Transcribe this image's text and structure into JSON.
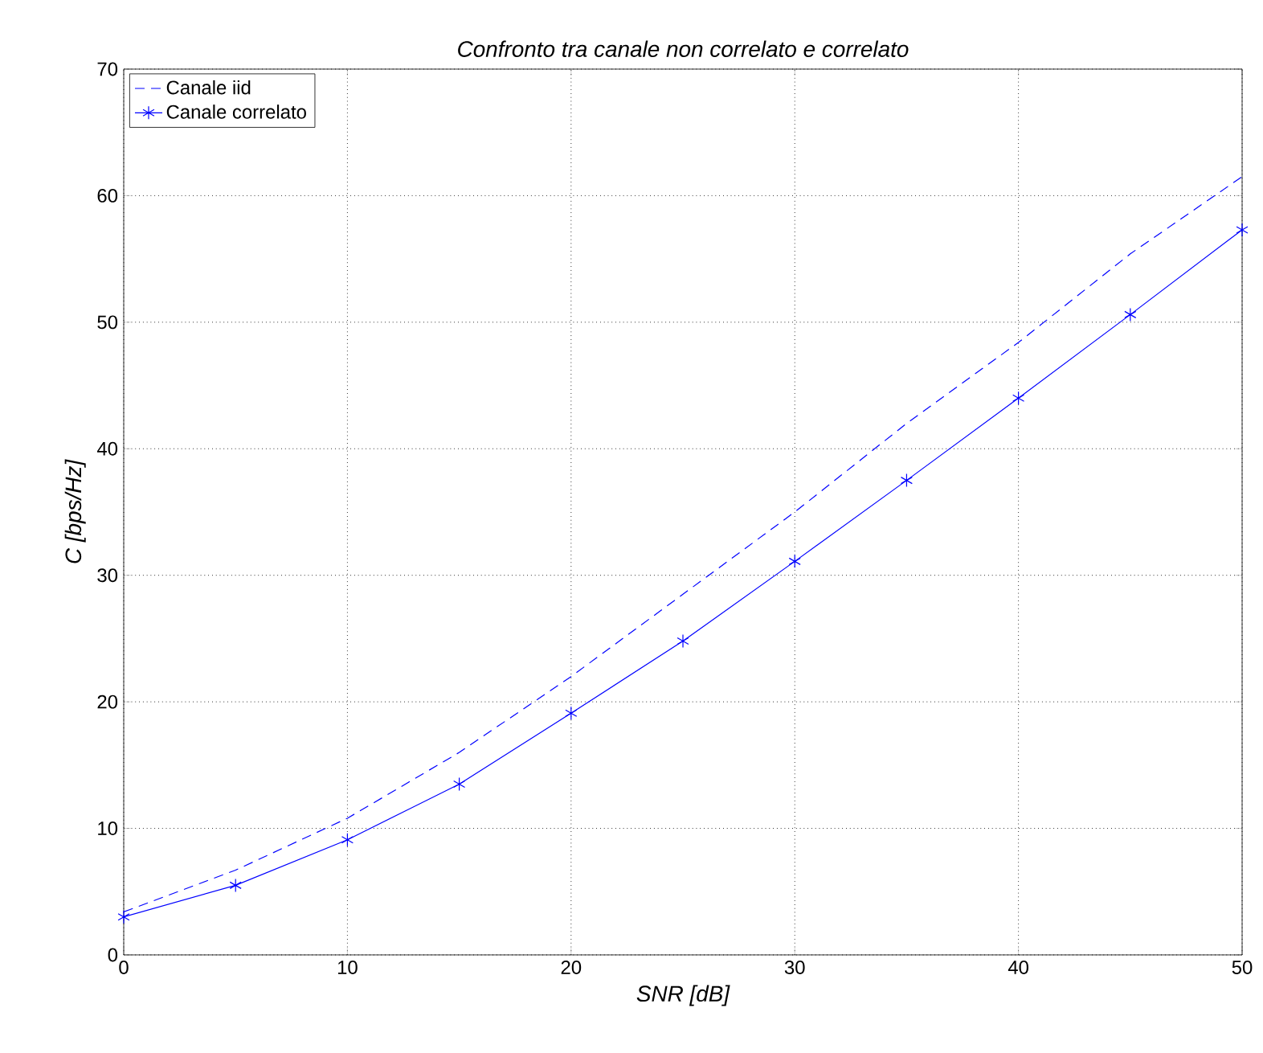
{
  "chart_data": {
    "type": "line",
    "title": "Confronto tra canale non correlato e correlato",
    "xlabel": "SNR [dB]",
    "ylabel": "C [bps/Hz]",
    "x": [
      0,
      5,
      10,
      15,
      20,
      25,
      30,
      35,
      40,
      45,
      50
    ],
    "series": [
      {
        "name": "Canale iid",
        "color": "#0000ff",
        "line_style": "dashed",
        "marker": "none",
        "values": [
          3.4,
          6.7,
          10.8,
          16,
          22,
          28.5,
          35,
          42,
          48.4,
          55.4,
          61.5
        ]
      },
      {
        "name": "Canale correlato",
        "color": "#0000ff",
        "line_style": "solid",
        "marker": "cross",
        "values": [
          3.0,
          5.5,
          9.1,
          13.5,
          19.1,
          24.8,
          31.1,
          37.5,
          44.0,
          50.6,
          57.3
        ]
      }
    ],
    "xlim": [
      0,
      50
    ],
    "ylim": [
      0,
      70
    ],
    "xticks": [
      0,
      10,
      20,
      30,
      40,
      50
    ],
    "yticks": [
      0,
      10,
      20,
      30,
      40,
      50,
      60,
      70
    ],
    "grid": true,
    "legend": "top left"
  }
}
